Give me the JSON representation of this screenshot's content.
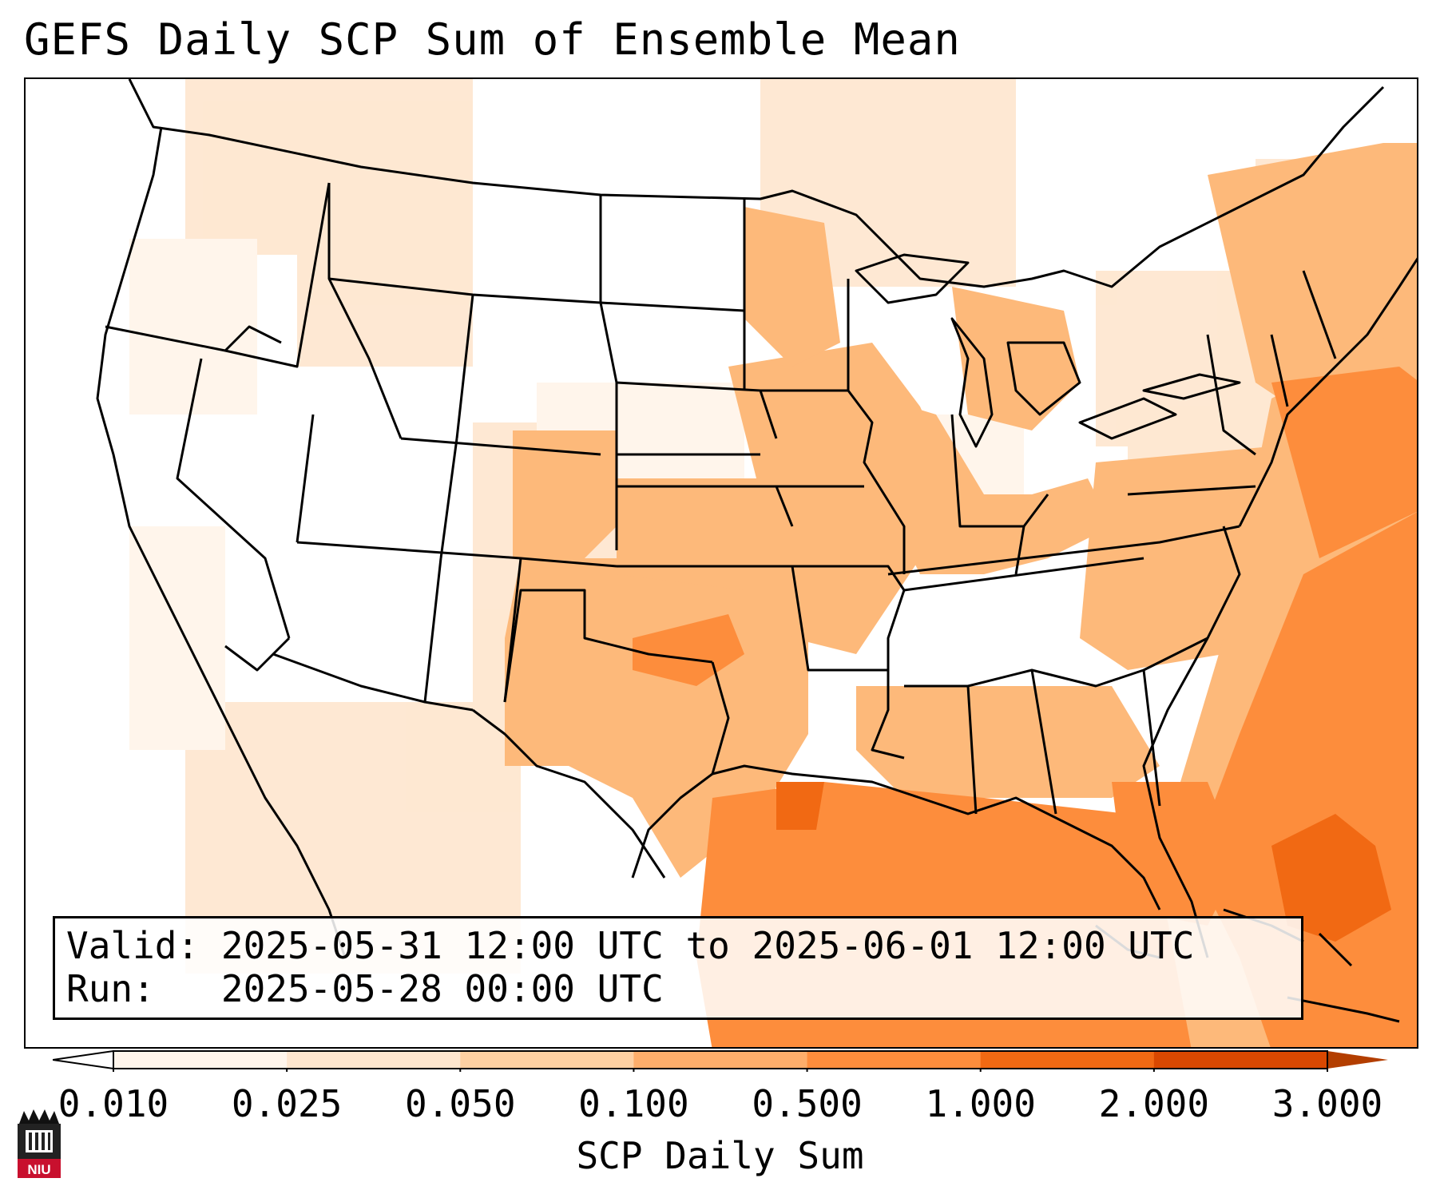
{
  "title": "GEFS Daily SCP Sum of Ensemble Mean",
  "info": {
    "valid_label": "Valid:",
    "valid_value": "2025-05-31 12:00 UTC to 2025-06-01 12:00 UTC",
    "run_label": "Run:",
    "run_value": "2025-05-28 00:00 UTC"
  },
  "colorbar": {
    "label": "SCP Daily Sum",
    "ticks": [
      "0.010",
      "0.025",
      "0.050",
      "0.100",
      "0.500",
      "1.000",
      "2.000",
      "3.000"
    ],
    "colors": [
      "#fff5eb",
      "#fee6ce",
      "#fdd0a2",
      "#fdae6b",
      "#fd8d3c",
      "#f16913",
      "#d94801"
    ],
    "extend": "both"
  },
  "map": {
    "region": "CONUS",
    "highest_values": "Gulf of Mexico, Florida, Atlantic Ocean east of the Carolinas",
    "lowest_values": "Great Basin, Northern Plains, Canadian Prairies"
  },
  "logo": {
    "text": "NIU"
  }
}
